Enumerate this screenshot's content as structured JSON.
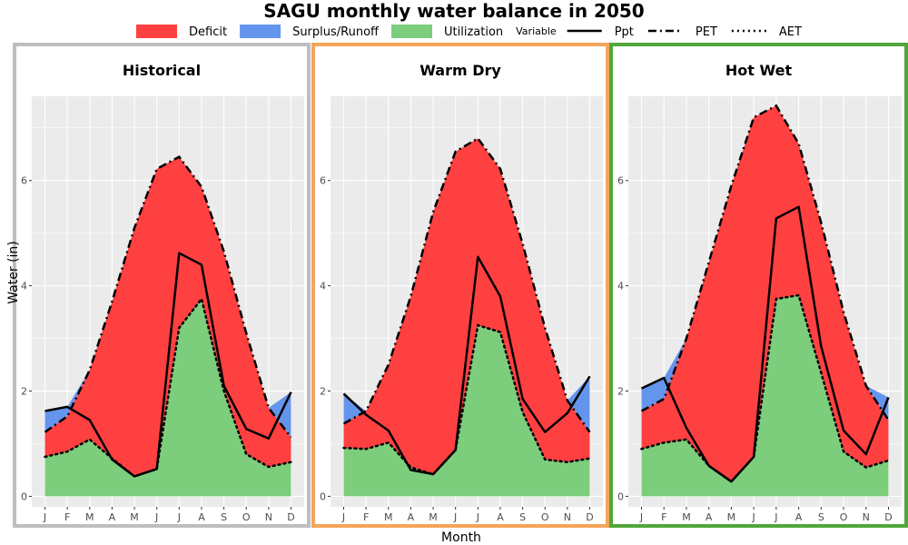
{
  "title": "SAGU monthly water balance in 2050",
  "legend": {
    "fill_items": [
      {
        "label": "Deficit",
        "color": "#FF4040"
      },
      {
        "label": "Surplus/Runoff",
        "color": "#6495ED"
      },
      {
        "label": "Utilization",
        "color": "#7CCD7C"
      }
    ],
    "line_title": "Variable",
    "line_items": [
      {
        "label": "Ppt",
        "style": "solid"
      },
      {
        "label": "PET",
        "style": "dashdot"
      },
      {
        "label": "AET",
        "style": "dotted"
      }
    ]
  },
  "chart_data": {
    "type": "area",
    "title": "SAGU monthly water balance in 2050",
    "xlabel": "Month",
    "ylabel": "Water (in)",
    "categories": [
      "J",
      "F",
      "M",
      "A",
      "M",
      "J",
      "J",
      "A",
      "S",
      "O",
      "N",
      "D"
    ],
    "ylim": [
      -0.2,
      7.6
    ],
    "yticks": [
      0,
      2,
      4,
      6
    ],
    "grid": true,
    "legend_position": "top",
    "panels": [
      {
        "name": "Historical",
        "border_color": "#BEBEBE",
        "series": [
          {
            "name": "Ppt",
            "values": [
              1.62,
              1.7,
              1.45,
              0.7,
              0.38,
              0.52,
              4.62,
              4.4,
              2.1,
              1.28,
              1.1,
              1.98
            ]
          },
          {
            "name": "PET",
            "values": [
              1.22,
              1.52,
              2.4,
              3.7,
              5.1,
              6.22,
              6.45,
              5.88,
              4.65,
              3.1,
              1.68,
              1.12
            ]
          },
          {
            "name": "AET",
            "values": [
              0.75,
              0.85,
              1.08,
              0.72,
              0.38,
              0.52,
              3.2,
              3.75,
              2.0,
              0.8,
              0.56,
              0.65
            ]
          }
        ]
      },
      {
        "name": "Warm Dry",
        "border_color": "#F4A55A",
        "series": [
          {
            "name": "Ppt",
            "values": [
              1.95,
              1.55,
              1.25,
              0.5,
              0.42,
              0.88,
              4.55,
              3.8,
              1.85,
              1.22,
              1.58,
              2.28
            ]
          },
          {
            "name": "PET",
            "values": [
              1.38,
              1.62,
              2.5,
              3.8,
              5.4,
              6.55,
              6.8,
              6.22,
              4.8,
              3.2,
              1.82,
              1.22
            ]
          },
          {
            "name": "AET",
            "values": [
              0.92,
              0.9,
              1.02,
              0.55,
              0.42,
              0.88,
              3.25,
              3.12,
              1.6,
              0.7,
              0.65,
              0.72
            ]
          }
        ]
      },
      {
        "name": "Hot Wet",
        "border_color": "#52A63B",
        "series": [
          {
            "name": "Ppt",
            "values": [
              2.05,
              2.25,
              1.3,
              0.58,
              0.28,
              0.75,
              5.28,
              5.5,
              2.85,
              1.25,
              0.8,
              1.88
            ]
          },
          {
            "name": "PET",
            "values": [
              1.62,
              1.85,
              3.0,
              4.45,
              5.9,
              7.2,
              7.42,
              6.7,
              5.2,
              3.5,
              2.1,
              1.45
            ]
          },
          {
            "name": "AET",
            "values": [
              0.9,
              1.02,
              1.08,
              0.58,
              0.28,
              0.75,
              3.75,
              3.82,
              2.35,
              0.85,
              0.55,
              0.68
            ]
          }
        ]
      }
    ]
  }
}
